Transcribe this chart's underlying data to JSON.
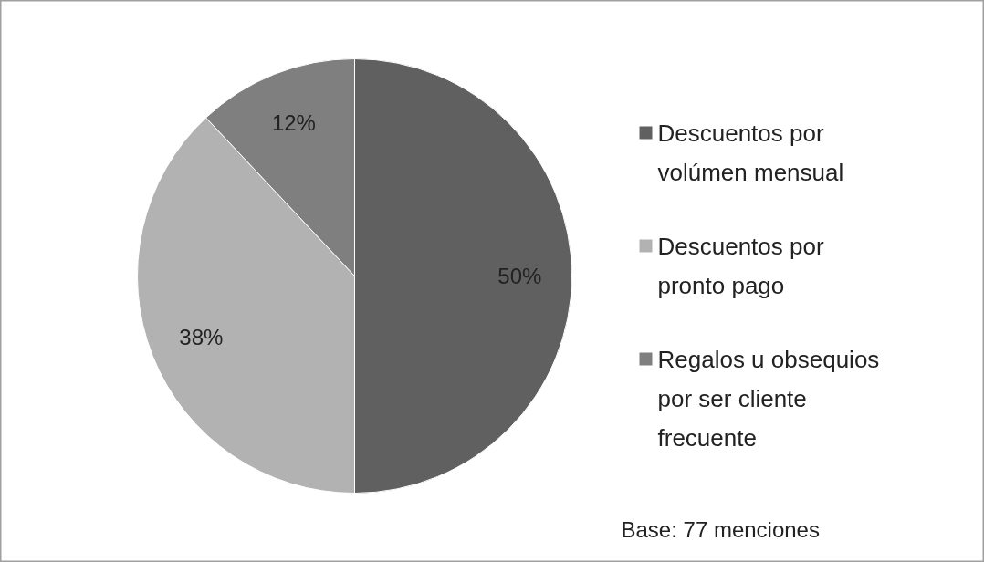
{
  "chart_data": {
    "type": "pie",
    "categories": [
      "Descuentos por volúmen mensual",
      "Descuentos por pronto pago",
      "Regalos u obsequios por ser cliente frecuente"
    ],
    "values": [
      50,
      38,
      12
    ],
    "colors": [
      "#606060",
      "#b2b2b2",
      "#7f7f7f"
    ],
    "value_labels": [
      "50%",
      "38%",
      "12%"
    ],
    "legend": "right",
    "annotations": [
      "Base: 77 menciones"
    ]
  }
}
